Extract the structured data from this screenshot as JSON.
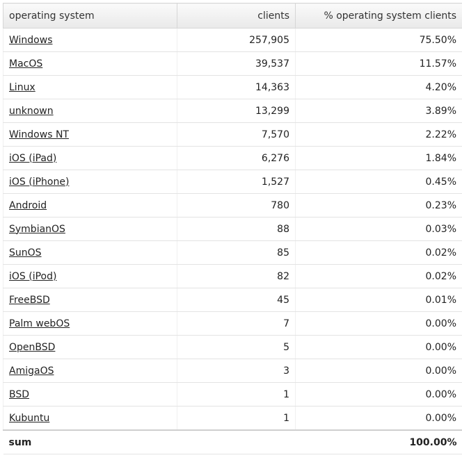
{
  "header": {
    "col_os": "operating system",
    "col_clients": "clients",
    "col_percent": "% operating system clients"
  },
  "rows": [
    {
      "os": "Windows",
      "clients": "257,905",
      "percent": "75.50%"
    },
    {
      "os": "MacOS",
      "clients": "39,537",
      "percent": "11.57%"
    },
    {
      "os": "Linux",
      "clients": "14,363",
      "percent": "4.20%"
    },
    {
      "os": "unknown",
      "clients": "13,299",
      "percent": "3.89%"
    },
    {
      "os": "Windows NT",
      "clients": "7,570",
      "percent": "2.22%"
    },
    {
      "os": "iOS (iPad)",
      "clients": "6,276",
      "percent": "1.84%"
    },
    {
      "os": "iOS (iPhone)",
      "clients": "1,527",
      "percent": "0.45%"
    },
    {
      "os": "Android",
      "clients": "780",
      "percent": "0.23%"
    },
    {
      "os": "SymbianOS",
      "clients": "88",
      "percent": "0.03%"
    },
    {
      "os": "SunOS",
      "clients": "85",
      "percent": "0.02%"
    },
    {
      "os": "iOS (iPod)",
      "clients": "82",
      "percent": "0.02%"
    },
    {
      "os": "FreeBSD",
      "clients": "45",
      "percent": "0.01%"
    },
    {
      "os": "Palm webOS",
      "clients": "7",
      "percent": "0.00%"
    },
    {
      "os": "OpenBSD",
      "clients": "5",
      "percent": "0.00%"
    },
    {
      "os": "AmigaOS",
      "clients": "3",
      "percent": "0.00%"
    },
    {
      "os": "BSD",
      "clients": "1",
      "percent": "0.00%"
    },
    {
      "os": "Kubuntu",
      "clients": "1",
      "percent": "0.00%"
    }
  ],
  "footer": {
    "label": "sum",
    "clients": "",
    "percent": "100.00%"
  }
}
